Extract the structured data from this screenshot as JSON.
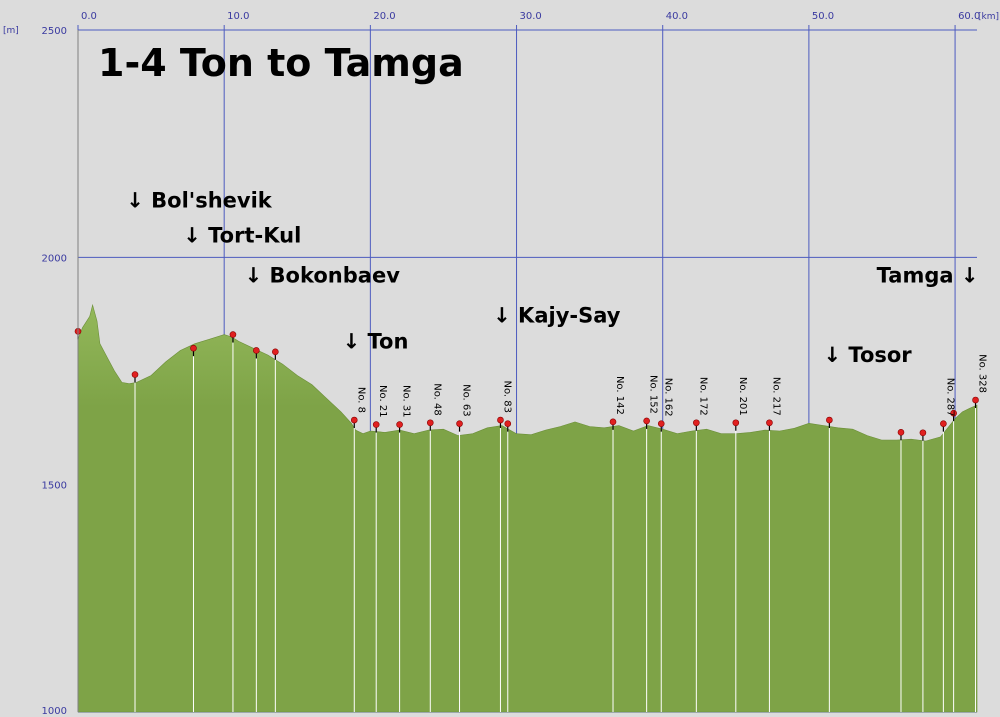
{
  "chart_data": {
    "type": "area",
    "title": "1-4 Ton to Tamga",
    "x_unit": "[km]",
    "y_unit": "[m]",
    "xlim": [
      0,
      61.5
    ],
    "ylim": [
      1000,
      2500
    ],
    "x_ticks": [
      0,
      10,
      20,
      30,
      40,
      50,
      60
    ],
    "x_tick_labels": [
      "0.0",
      "10.0",
      "20.0",
      "30.0",
      "40.0",
      "50.0",
      "60.0"
    ],
    "y_ticks": [
      1000,
      1500,
      2000,
      2500
    ],
    "y_tick_labels": [
      "1000",
      "1500",
      "2000",
      "2500"
    ],
    "grid": true,
    "colors": {
      "fill": "#7ea347",
      "fill_top": "#93b85a",
      "plot_bg": "#dcdcdc",
      "grid": "#4d5bbf",
      "marker": "#e02020",
      "dropline": "#ffffff"
    },
    "profile": {
      "x": [
        0,
        0.3,
        0.8,
        1.0,
        1.3,
        1.5,
        2.0,
        2.5,
        3.0,
        3.5,
        4.0,
        5.0,
        6.0,
        7.0,
        8.0,
        9.0,
        10.0,
        10.5,
        11.0,
        12.0,
        13.0,
        14.0,
        15.0,
        16.0,
        16.5,
        17.0,
        18.0,
        18.7,
        19.0,
        19.5,
        20.0,
        21.0,
        22.0,
        23.0,
        24.0,
        25.0,
        26.0,
        27.0,
        28.0,
        29.0,
        30.0,
        31.0,
        32.0,
        33.0,
        34.0,
        35.0,
        36.0,
        37.0,
        38.0,
        39.0,
        40.0,
        41.0,
        42.0,
        43.0,
        44.0,
        45.0,
        46.0,
        47.0,
        48.0,
        49.0,
        50.0,
        51.0,
        52.0,
        53.0,
        54.0,
        55.0,
        56.0,
        57.0,
        58.0,
        59.0,
        59.5,
        60.0,
        60.5,
        61.0,
        61.5
      ],
      "y": [
        1820,
        1845,
        1870,
        1895,
        1860,
        1810,
        1780,
        1750,
        1725,
        1722,
        1725,
        1740,
        1770,
        1795,
        1810,
        1820,
        1830,
        1825,
        1815,
        1800,
        1785,
        1765,
        1740,
        1720,
        1705,
        1690,
        1660,
        1635,
        1620,
        1612,
        1618,
        1615,
        1620,
        1612,
        1620,
        1622,
        1608,
        1612,
        1625,
        1630,
        1612,
        1610,
        1620,
        1628,
        1638,
        1628,
        1625,
        1630,
        1618,
        1630,
        1622,
        1612,
        1618,
        1622,
        1612,
        1612,
        1615,
        1620,
        1618,
        1624,
        1635,
        1630,
        1625,
        1622,
        1608,
        1598,
        1598,
        1600,
        1596,
        1605,
        1625,
        1645,
        1660,
        1668,
        1675
      ]
    },
    "markers": [
      {
        "x": 0.0,
        "y": 1835,
        "label": ""
      },
      {
        "x": 3.9,
        "y": 1740,
        "label": ""
      },
      {
        "x": 7.9,
        "y": 1798,
        "label": ""
      },
      {
        "x": 10.6,
        "y": 1828,
        "label": ""
      },
      {
        "x": 12.2,
        "y": 1793,
        "label": ""
      },
      {
        "x": 13.5,
        "y": 1790,
        "label": ""
      },
      {
        "x": 18.9,
        "y": 1640,
        "label": "No. 8"
      },
      {
        "x": 20.4,
        "y": 1630,
        "label": "No. 21"
      },
      {
        "x": 22.0,
        "y": 1630,
        "label": "No. 31"
      },
      {
        "x": 24.1,
        "y": 1634,
        "label": "No. 48"
      },
      {
        "x": 26.1,
        "y": 1632,
        "label": "No. 63"
      },
      {
        "x": 28.9,
        "y": 1640,
        "label": "No. 83"
      },
      {
        "x": 29.4,
        "y": 1632,
        "label": ""
      },
      {
        "x": 36.6,
        "y": 1636,
        "label": "No. 142"
      },
      {
        "x": 38.9,
        "y": 1638,
        "label": "No. 152"
      },
      {
        "x": 39.9,
        "y": 1632,
        "label": "No. 162"
      },
      {
        "x": 42.3,
        "y": 1634,
        "label": "No. 172"
      },
      {
        "x": 45.0,
        "y": 1634,
        "label": "No. 201"
      },
      {
        "x": 47.3,
        "y": 1634,
        "label": "No. 217"
      },
      {
        "x": 51.4,
        "y": 1640,
        "label": ""
      },
      {
        "x": 56.3,
        "y": 1613,
        "label": ""
      },
      {
        "x": 57.8,
        "y": 1612,
        "label": ""
      },
      {
        "x": 59.2,
        "y": 1632,
        "label": "No. 287"
      },
      {
        "x": 59.9,
        "y": 1655,
        "label": ""
      },
      {
        "x": 61.4,
        "y": 1684,
        "label": "No. 328"
      }
    ],
    "places": [
      {
        "name": "↓ Bol'shevik",
        "x": 3.3,
        "y": 2110
      },
      {
        "name": "↓ Tort-Kul",
        "x": 7.2,
        "y": 2033
      },
      {
        "name": "↓ Bokonbaev",
        "x": 11.4,
        "y": 1945
      },
      {
        "name": "↓ Ton",
        "x": 18.1,
        "y": 1800
      },
      {
        "name": "↓ Kajy-Say",
        "x": 28.4,
        "y": 1857
      },
      {
        "name": "↓ Tosor",
        "x": 51.0,
        "y": 1770
      },
      {
        "name": "Tamga ↓",
        "x": 61.6,
        "y": 1945,
        "anchor": "end"
      }
    ]
  }
}
